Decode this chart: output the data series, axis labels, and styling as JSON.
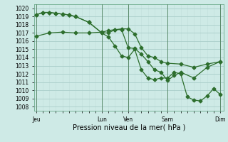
{
  "bg_color": "#ceeae6",
  "grid_major_color": "#aaceca",
  "grid_minor_color": "#c0deda",
  "line_color": "#2d6e2d",
  "ylim": [
    1007.5,
    1020.5
  ],
  "yticks": [
    1008,
    1009,
    1010,
    1011,
    1012,
    1013,
    1014,
    1015,
    1016,
    1017,
    1018,
    1019,
    1020
  ],
  "xlabel": "Pression niveau de la mer( hPa )",
  "day_labels": [
    "Jeu",
    "",
    "Lun",
    "Ven",
    "",
    "Sam",
    "",
    "Dim"
  ],
  "tick_label_positions": [
    0,
    10,
    14,
    20,
    28
  ],
  "tick_labels": [
    "Jeu",
    "Lun",
    "Ven",
    "Sam",
    "Dim"
  ],
  "vline_positions": [
    0,
    10,
    14,
    20,
    28
  ],
  "xlim": [
    -0.3,
    28.5
  ],
  "line1_x": [
    0,
    2,
    4,
    6,
    8,
    10,
    11,
    12,
    13,
    14,
    15,
    16,
    17,
    18,
    19,
    20,
    22,
    24,
    26,
    28
  ],
  "line1_y": [
    1016.6,
    1017.0,
    1017.1,
    1017.0,
    1017.0,
    1017.1,
    1017.3,
    1017.4,
    1017.5,
    1017.5,
    1016.9,
    1015.2,
    1014.2,
    1014.0,
    1013.5,
    1013.3,
    1013.2,
    1012.8,
    1013.2,
    1013.5
  ],
  "line2_x": [
    0,
    1,
    2,
    3,
    4,
    5,
    6,
    8,
    10,
    11,
    12,
    13,
    14,
    15,
    16,
    17,
    18,
    19,
    20,
    21,
    22,
    24,
    26,
    28
  ],
  "line2_y": [
    1019.2,
    1019.5,
    1019.5,
    1019.4,
    1019.3,
    1019.2,
    1019.0,
    1018.3,
    1017.0,
    1017.0,
    1017.4,
    1017.4,
    1015.2,
    1015.1,
    1014.4,
    1013.5,
    1012.5,
    1012.2,
    1011.2,
    1011.8,
    1012.2,
    1011.5,
    1012.8,
    1013.5
  ],
  "line3_x": [
    0,
    1,
    2,
    3,
    4,
    5,
    6,
    8,
    10,
    11,
    12,
    13,
    14,
    15,
    16,
    17,
    18,
    19,
    20,
    21,
    22,
    23,
    24,
    25,
    26,
    27,
    28
  ],
  "line3_y": [
    1019.2,
    1019.5,
    1019.5,
    1019.4,
    1019.3,
    1019.2,
    1019.0,
    1018.3,
    1017.0,
    1016.5,
    1015.4,
    1014.2,
    1014.0,
    1015.0,
    1012.5,
    1011.5,
    1011.3,
    1011.5,
    1011.5,
    1012.2,
    1012.0,
    1009.2,
    1008.8,
    1008.7,
    1009.3,
    1010.2,
    1009.5
  ],
  "marker_size": 2.5,
  "line_width": 0.9,
  "tick_fontsize": 5.5,
  "xlabel_fontsize": 7
}
